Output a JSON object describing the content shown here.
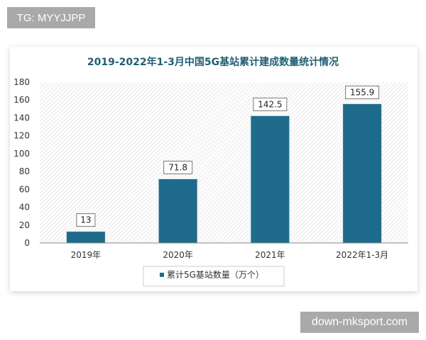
{
  "watermarks": {
    "top_left": "TG: MYYJJPP",
    "bottom_right": "down-mksport.com"
  },
  "chart_data": {
    "type": "bar",
    "title": "2019-2022年1-3月中国5G基站累计建成数量统计情况",
    "categories": [
      "2019年",
      "2020年",
      "2021年",
      "2022年1-3月"
    ],
    "series": [
      {
        "name": "累计5G基站数量（万个）",
        "values": [
          13,
          71.8,
          142.5,
          155.9
        ]
      }
    ],
    "data_labels": [
      "13",
      "71.8",
      "142.5",
      "155.9"
    ],
    "ylim": [
      0,
      180
    ],
    "yticks": [
      0,
      20,
      40,
      60,
      80,
      100,
      120,
      140,
      160,
      180
    ],
    "grid": false,
    "legend": "bottom-center",
    "colors": {
      "bar": "#1f6b8c",
      "title": "#1f5f73",
      "background_hatch": "#d9d9d9"
    }
  }
}
